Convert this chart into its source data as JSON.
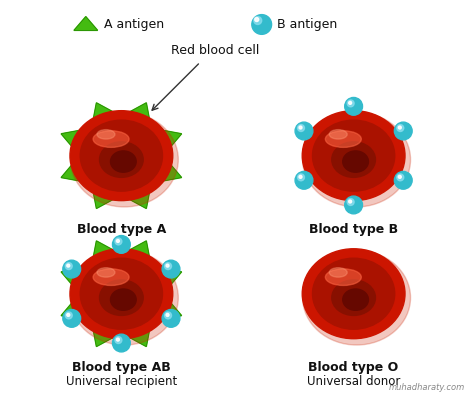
{
  "bg_color": "#ffffff",
  "legend_a_antigen": "A antigen",
  "legend_b_antigen": "B antigen",
  "legend_rbc": "Red blood cell",
  "watermark": "muhadharaty.com",
  "rbc_outer_color": "#cc1500",
  "rbc_mid_color": "#aa1200",
  "rbc_inner_color": "#881000",
  "rbc_highlight": "#ee3322",
  "rbc_center_dark": "#660800",
  "a_antigen_color": "#44bb11",
  "a_antigen_dark": "#228800",
  "b_antigen_color": "#33bbcc",
  "b_antigen_light": "#88ddee",
  "text_color": "#111111",
  "arrow_color": "#333333"
}
